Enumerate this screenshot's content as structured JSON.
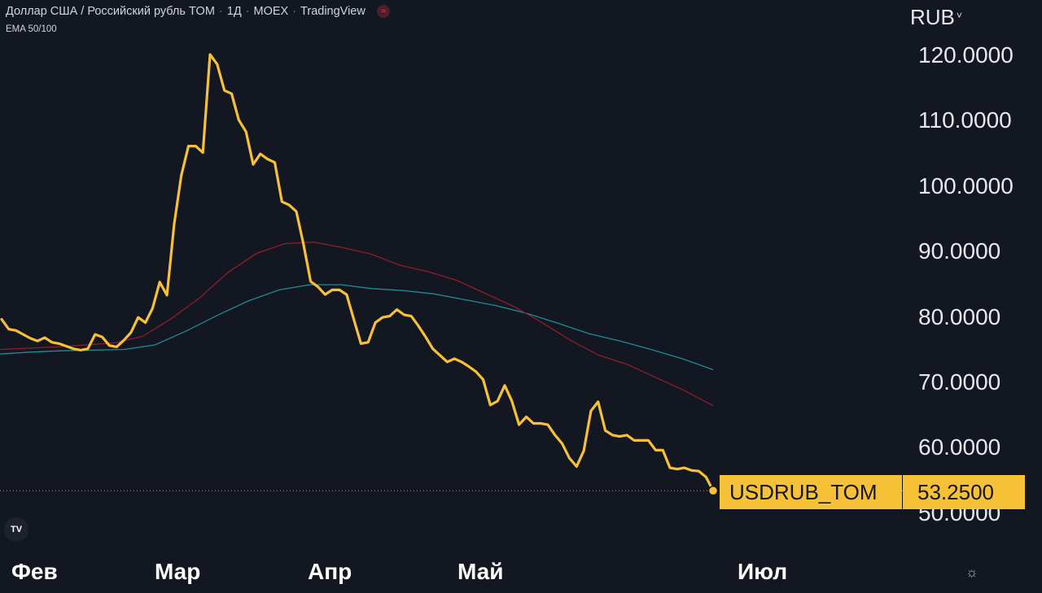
{
  "header": {
    "pair": "Доллар США / Российский рубль TOM",
    "interval": "1Д",
    "exchange": "MOEX",
    "source": "TradingView",
    "indicator": "EMA 50/100"
  },
  "currency": "RUB",
  "last_label": {
    "symbol": "USDRUB_TOM",
    "price": "53.2500"
  },
  "colors": {
    "background": "#131722",
    "price_line": "#f7c137",
    "ema50": "#8e1e2a",
    "ema100": "#1f8c94",
    "text": "#d1d4dc"
  },
  "chart_data": {
    "type": "line",
    "x_labels": [
      "Фев",
      "Мар",
      "Апр",
      "Май",
      "Июл"
    ],
    "y_ticks": [
      "120.0000",
      "110.0000",
      "100.0000",
      "90.0000",
      "80.0000",
      "70.0000",
      "60.0000",
      "50.0000"
    ],
    "ylim": [
      45,
      125
    ],
    "grid": false,
    "legend": "none",
    "series": [
      {
        "name": "USDRUB_TOM",
        "color": "#f7c137",
        "values": [
          79.5,
          78,
          77.8,
          77.2,
          76.6,
          76.2,
          76.7,
          76,
          75.8,
          75.4,
          75,
          74.8,
          75,
          77.2,
          76.8,
          75.5,
          75.3,
          76.3,
          77.5,
          79.8,
          79,
          81.2,
          85.2,
          83.2,
          94,
          101.5,
          106,
          106,
          105,
          120,
          118.5,
          114.5,
          114,
          110,
          108.2,
          103.2,
          104.8,
          104,
          103.5,
          97.5,
          97,
          96,
          91,
          85.3,
          84.5,
          83.3,
          84,
          84,
          83.3,
          79.5,
          75.8,
          76,
          79,
          79.8,
          80,
          81,
          80.2,
          80,
          78.5,
          76.8,
          75,
          74,
          73,
          73.5,
          73,
          72.3,
          71.5,
          70.3,
          66.4,
          67,
          69.4,
          67,
          63.4,
          64.6,
          63.6,
          63.6,
          63.4,
          61.8,
          60.5,
          58.3,
          57,
          59.4,
          65.5,
          66.9,
          62.5,
          61.8,
          61.6,
          61.8,
          61,
          61,
          61,
          59.5,
          59.5,
          56.8,
          56.6,
          56.8,
          56.4,
          56.3,
          55.4,
          53.3
        ]
      },
      {
        "name": "EMA 50",
        "color": "#8e1e2a",
        "values": [
          74.9,
          75.1,
          75.3,
          75.6,
          75.9,
          76.9,
          79.6,
          82.8,
          86.7,
          89.6,
          91.1,
          91.3,
          90.5,
          89.5,
          87.8,
          86.8,
          85.5,
          83.5,
          81.5,
          79,
          76.3,
          74,
          72.6,
          70.6,
          68.6,
          66.3
        ]
      },
      {
        "name": "EMA 100",
        "color": "#1f8c94",
        "values": [
          74.2,
          74.5,
          74.7,
          74.8,
          74.9,
          75.6,
          77.7,
          80.1,
          82.3,
          84,
          84.8,
          84.8,
          84.2,
          83.9,
          83.4,
          82.5,
          81.6,
          80.4,
          78.9,
          77.3,
          76.2,
          74.9,
          73.5,
          71.8
        ]
      }
    ]
  }
}
